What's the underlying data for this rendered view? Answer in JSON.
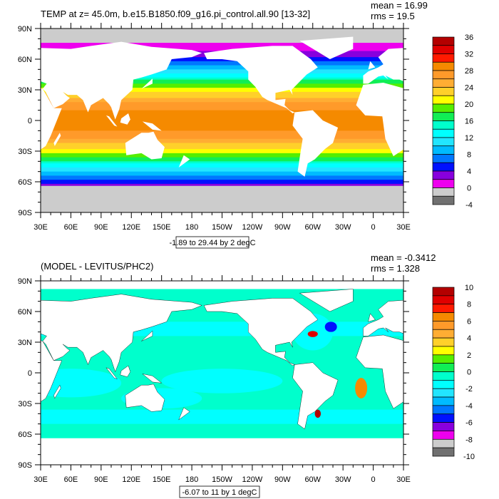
{
  "panels": [
    {
      "title": "TEMP at z=  45.0m, b.e15.B1850.f09_g16.pi_control.all.90 [13-32]",
      "mean": "mean = 16.99",
      "rms": "rms = 19.5",
      "info": "-1.89 to 29.44 by 2 degC",
      "colorbar_labels": [
        "36",
        "32",
        "28",
        "24",
        "20",
        "16",
        "12",
        "8",
        "4",
        "0",
        "-4"
      ],
      "cb_min": -4,
      "cb_max": 36
    },
    {
      "title": "(MODEL - LEVITUS/PHC2)",
      "mean": "mean = -0.3412",
      "rms": "rms = 1.328",
      "info": "-6.07 to 11 by 1 degC",
      "colorbar_labels": [
        "10",
        "8",
        "6",
        "4",
        "2",
        "0",
        "-2",
        "-4",
        "-6",
        "-8",
        "-10"
      ],
      "cb_min": -10,
      "cb_max": 10
    }
  ],
  "lat_labels": [
    "90N",
    "60N",
    "30N",
    "0",
    "30S",
    "60S",
    "90S"
  ],
  "lon_labels": [
    "30E",
    "60E",
    "90E",
    "120E",
    "150E",
    "180",
    "150W",
    "120W",
    "90W",
    "60W",
    "30W",
    "0",
    "30E"
  ],
  "colors": [
    "#b40000",
    "#e00000",
    "#ff1a00",
    "#f58a00",
    "#ff9a2a",
    "#ffad33",
    "#ffd02a",
    "#ffff00",
    "#55ee00",
    "#11ee55",
    "#00ffcc",
    "#00ffff",
    "#22e5ff",
    "#00bbff",
    "#0077ff",
    "#0011ff",
    "#8800dd",
    "#ee00ee",
    "#cccccc",
    "#707070"
  ],
  "land_color": "#ffffff",
  "mask_color": "#cccccc"
}
